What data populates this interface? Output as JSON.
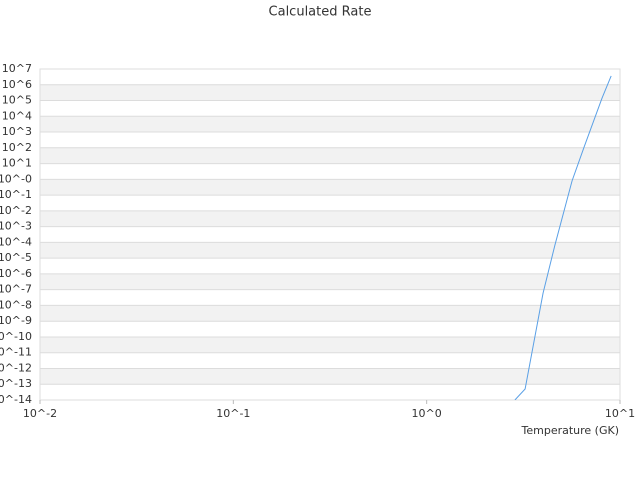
{
  "chart_data": {
    "type": "line",
    "title": "Calculated Rate",
    "x_label": "Temperature (GK)",
    "x": [
      2.86,
      3.23,
      4.0,
      4.61,
      5.65,
      6.52,
      8.07,
      9.0
    ],
    "values": [
      1e-14,
      5e-14,
      6e-08,
      7e-05,
      0.8,
      112,
      140000,
      3600000
    ],
    "color": "#5aa0e6",
    "xscale": "log",
    "yscale": "log",
    "xlim": [
      0.01,
      10
    ],
    "xticks": [
      {
        "value": 0.01,
        "label": "10^-2"
      },
      {
        "value": 0.1,
        "label": "10^-1"
      },
      {
        "value": 1,
        "label": "10^0"
      },
      {
        "value": 10,
        "label": "10^1"
      }
    ],
    "ylim": [
      1e-14,
      10000000
    ],
    "yticks": [
      {
        "value": 1e-14,
        "label": "10^-14"
      },
      {
        "value": 1e-13,
        "label": "10^-13"
      },
      {
        "value": 1e-12,
        "label": "10^-12"
      },
      {
        "value": 1e-11,
        "label": "10^-11"
      },
      {
        "value": 1e-10,
        "label": "10^-10"
      },
      {
        "value": 1e-09,
        "label": "10^-9"
      },
      {
        "value": 1e-08,
        "label": "10^-8"
      },
      {
        "value": 1e-07,
        "label": "10^-7"
      },
      {
        "value": 1e-06,
        "label": "10^-6"
      },
      {
        "value": 1e-05,
        "label": "10^-5"
      },
      {
        "value": 0.0001,
        "label": "10^-4"
      },
      {
        "value": 0.001,
        "label": "10^-3"
      },
      {
        "value": 0.01,
        "label": "10^-2"
      },
      {
        "value": 0.1,
        "label": "10^-1"
      },
      {
        "value": 1,
        "label": "10^-0"
      },
      {
        "value": 10,
        "label": "10^1"
      },
      {
        "value": 100,
        "label": "10^2"
      },
      {
        "value": 1000,
        "label": "10^3"
      },
      {
        "value": 10000,
        "label": "10^4"
      },
      {
        "value": 100000,
        "label": "10^5"
      },
      {
        "value": 1000000,
        "label": "10^6"
      },
      {
        "value": 10000000,
        "label": "10^7"
      }
    ],
    "grid": true,
    "banded": true
  }
}
